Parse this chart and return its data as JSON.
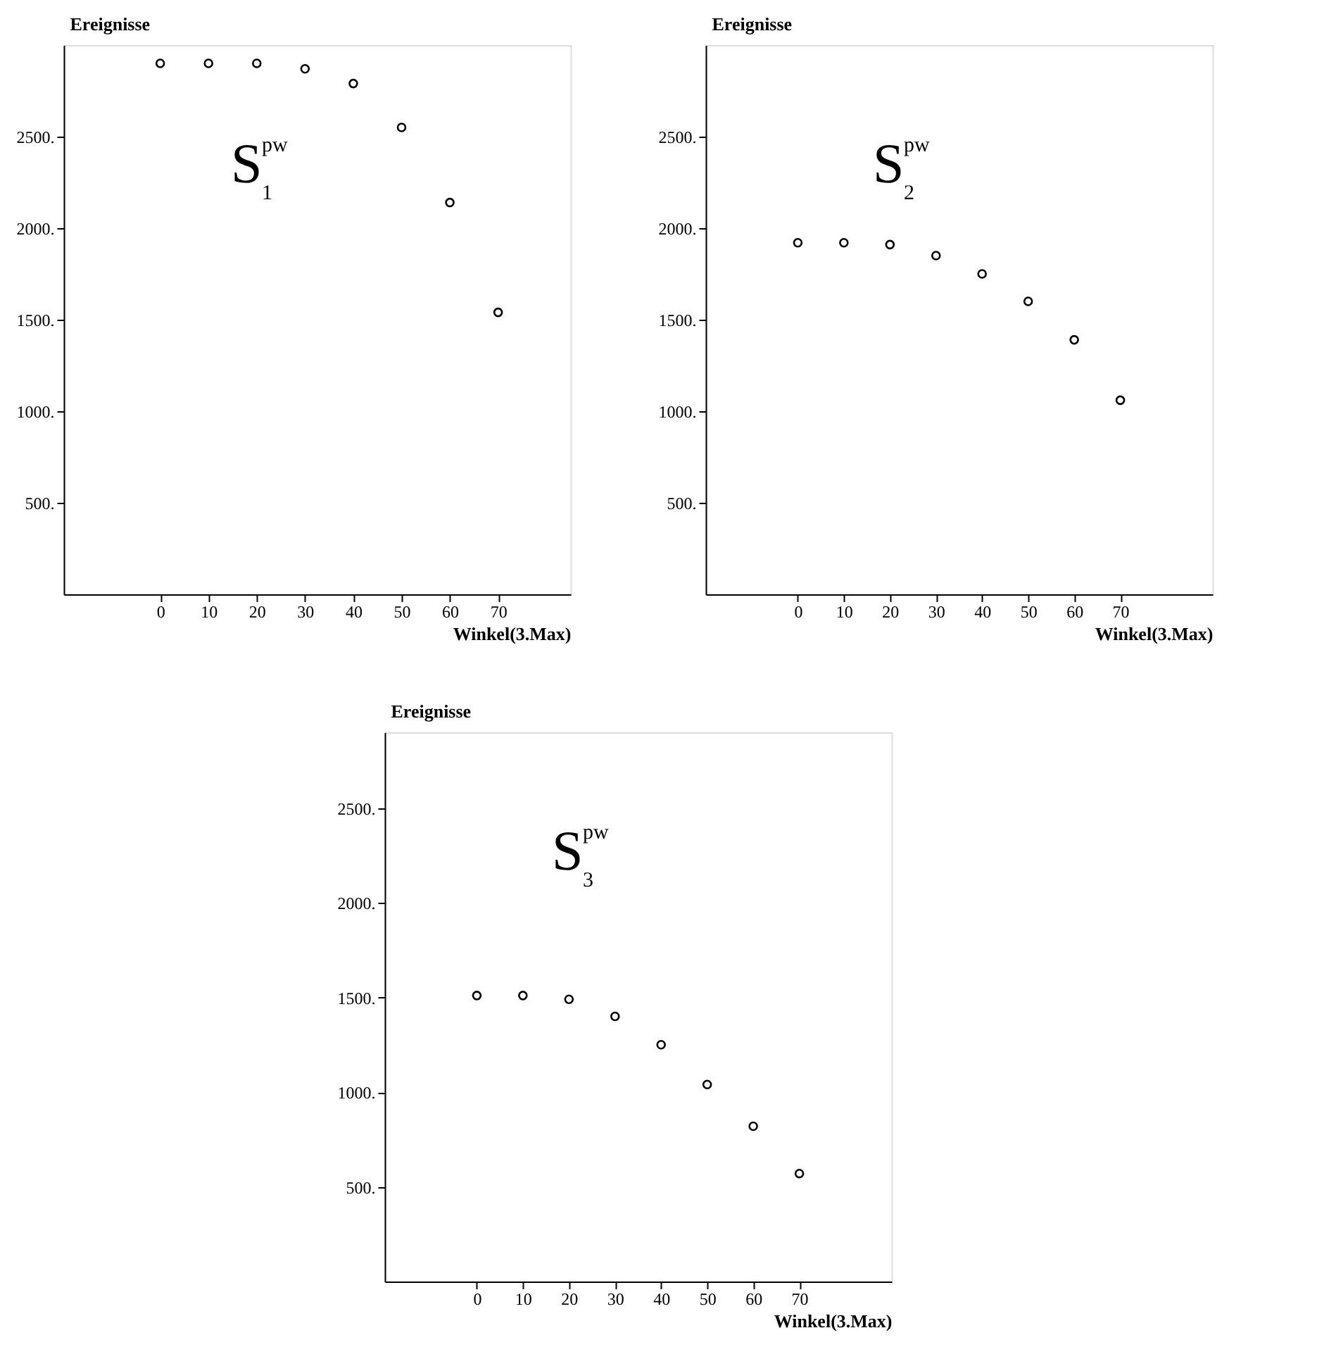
{
  "chart_data": [
    {
      "type": "scatter",
      "title": "S$^{pw}$$_{1}$",
      "xlabel": "Winkel(3.Max)",
      "ylabel": "Ereignisse",
      "marker": "circle",
      "grid": false,
      "x": [
        0,
        10,
        20,
        30,
        40,
        50,
        60,
        70
      ],
      "series": [
        {
          "color": "#000000",
          "values": [
            2900,
            2900,
            2900,
            2870,
            2790,
            2550,
            2140,
            1540
          ]
        }
      ],
      "xlim": [
        -20,
        85
      ],
      "ylim": [
        0,
        3000
      ],
      "xticks": [
        0,
        10,
        20,
        30,
        40,
        50,
        60,
        70
      ],
      "yticks": [
        {
          "value": 500,
          "label": "500."
        },
        {
          "value": 1000,
          "label": "1000."
        },
        {
          "value": 1500,
          "label": "1500."
        },
        {
          "value": 2000,
          "label": "2000."
        },
        {
          "value": 2500,
          "label": "2500."
        }
      ]
    },
    {
      "type": "scatter",
      "title": "S$^{pw}$$_{2}$",
      "xlabel": "Winkel(3.Max)",
      "ylabel": "Ereignisse",
      "marker": "circle",
      "grid": false,
      "x": [
        0,
        10,
        20,
        30,
        40,
        50,
        60,
        70
      ],
      "series": [
        {
          "color": "#000000",
          "values": [
            1920,
            1920,
            1910,
            1850,
            1750,
            1600,
            1390,
            1060
          ]
        }
      ],
      "xlim": [
        -20,
        90
      ],
      "ylim": [
        0,
        3000
      ],
      "xticks": [
        0,
        10,
        20,
        30,
        40,
        50,
        60,
        70
      ],
      "yticks": [
        {
          "value": 500,
          "label": "500."
        },
        {
          "value": 1000,
          "label": "1000."
        },
        {
          "value": 1500,
          "label": "1500."
        },
        {
          "value": 2000,
          "label": "2000."
        },
        {
          "value": 2500,
          "label": "2500."
        }
      ]
    },
    {
      "type": "scatter",
      "title": "S$^{pw}$$_{3}$",
      "xlabel": "Winkel(3.Max)",
      "ylabel": "Ereignisse",
      "marker": "circle",
      "grid": false,
      "x": [
        0,
        10,
        20,
        30,
        40,
        50,
        60,
        70
      ],
      "series": [
        {
          "color": "#000000",
          "values": [
            1510,
            1510,
            1490,
            1400,
            1250,
            1040,
            820,
            570
          ]
        }
      ],
      "xlim": [
        -20,
        90
      ],
      "ylim": [
        0,
        2900
      ],
      "xticks": [
        0,
        10,
        20,
        30,
        40,
        50,
        60,
        70
      ],
      "yticks": [
        {
          "value": 500,
          "label": "500."
        },
        {
          "value": 1000,
          "label": "1000."
        },
        {
          "value": 1500,
          "label": "1500."
        },
        {
          "value": 2000,
          "label": "2000."
        },
        {
          "value": 2500,
          "label": "2500."
        }
      ]
    }
  ]
}
